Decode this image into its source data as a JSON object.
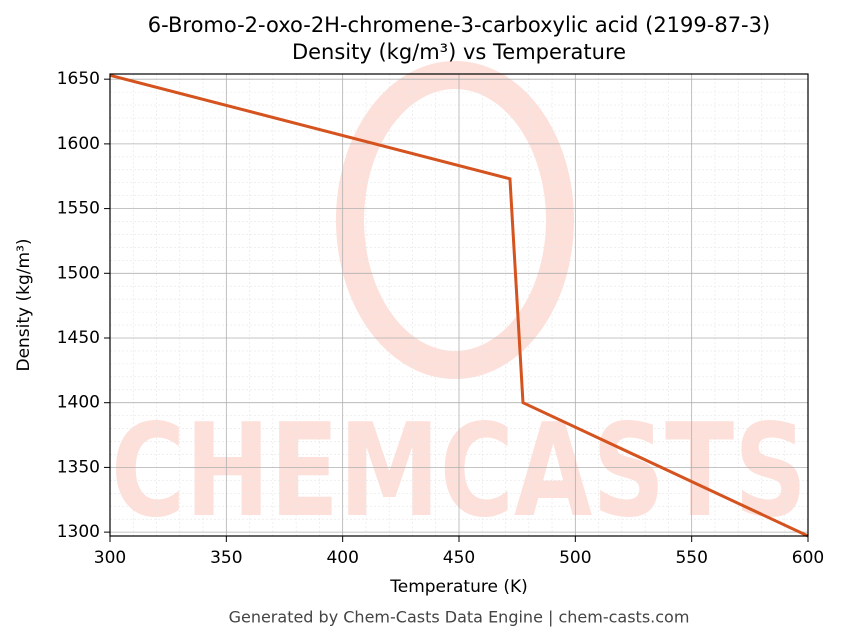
{
  "chart_data": {
    "type": "line",
    "title": "6-Bromo-2-oxo-2H-chromene-3-carboxylic acid (2199-87-3)",
    "subtitle": "Density (kg/m³) vs Temperature",
    "x_label": "Temperature (K)",
    "y_label": "Density (kg/m³)",
    "footer": "Generated by Chem-Casts Data Engine | chem-casts.com",
    "watermark": "CHEMCASTS",
    "x": [
      300,
      471.9,
      477.5,
      600
    ],
    "series": [
      {
        "name": "Density",
        "color": "#d4531f",
        "values": [
          1653,
          1573,
          1400,
          1297
        ]
      }
    ],
    "xlim": [
      300,
      600
    ],
    "xticks": [
      300,
      350,
      400,
      450,
      500,
      550,
      600
    ],
    "ylim": [
      1297,
      1654
    ],
    "yticks": [
      1300,
      1350,
      1400,
      1450,
      1500,
      1550,
      1600,
      1650
    ],
    "grid": true,
    "minor_grid": true
  }
}
